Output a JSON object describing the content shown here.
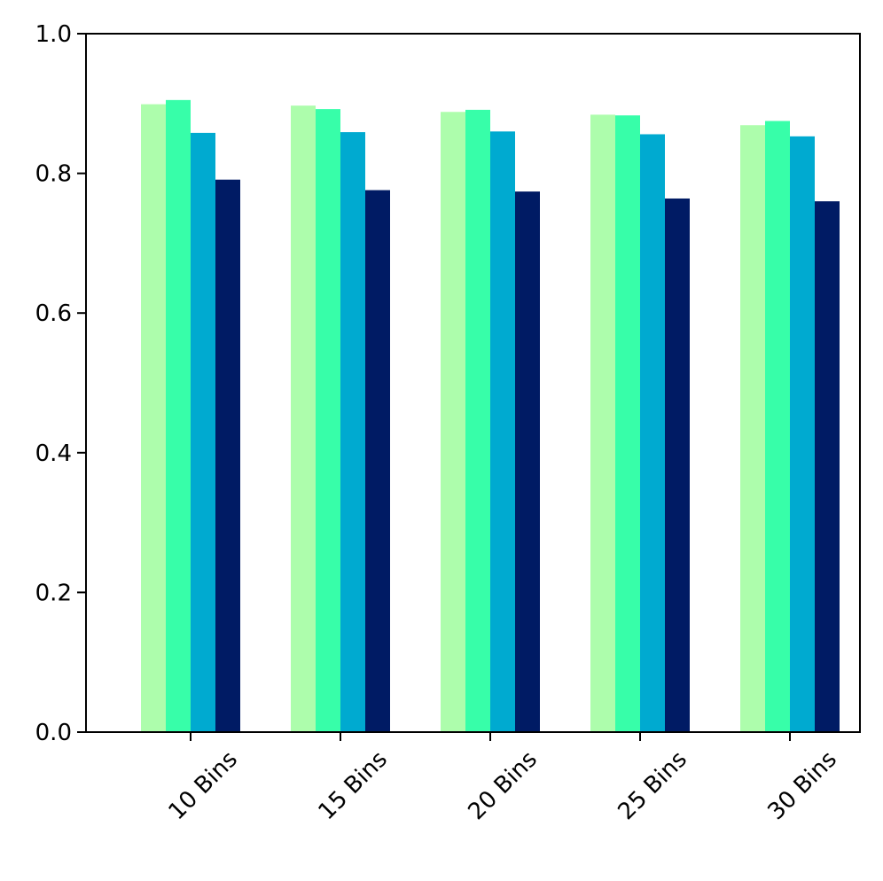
{
  "chart_data": {
    "type": "bar",
    "title": "",
    "xlabel": "",
    "ylabel": "",
    "categories": [
      "10 Bins",
      "15 Bins",
      "20 Bins",
      "25 Bins",
      "30 Bins"
    ],
    "ylim": [
      0,
      1.0
    ],
    "yticks": [
      "0.0",
      "0.2",
      "0.4",
      "0.6",
      "0.8",
      "1.0"
    ],
    "grid": false,
    "legend": "none",
    "series": [
      {
        "color": "#adfdac",
        "values": [
          0.899,
          0.897,
          0.888,
          0.884,
          0.869
        ]
      },
      {
        "color": "#37fea9",
        "values": [
          0.905,
          0.892,
          0.891,
          0.883,
          0.875
        ]
      },
      {
        "color": "#00aad0",
        "values": [
          0.858,
          0.859,
          0.86,
          0.856,
          0.853
        ]
      },
      {
        "color": "#001b64",
        "values": [
          0.791,
          0.776,
          0.774,
          0.764,
          0.76
        ]
      }
    ]
  }
}
